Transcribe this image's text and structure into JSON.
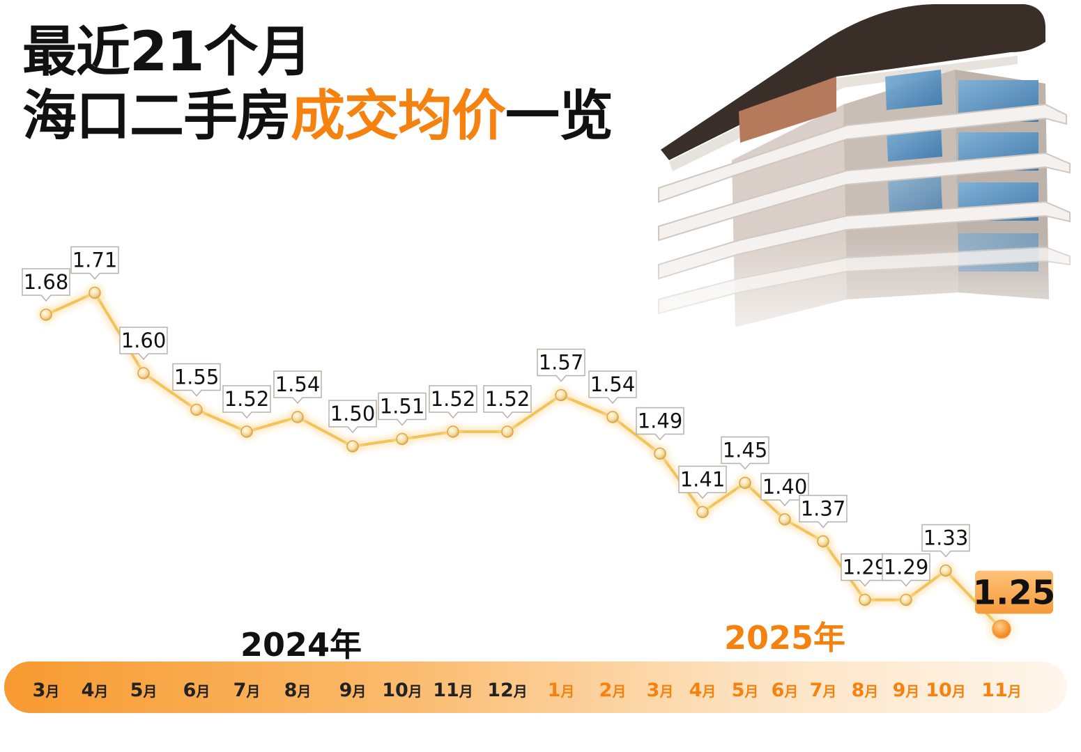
{
  "title": {
    "line1": "最近21个月",
    "line2_prefix": "海口二手房",
    "line2_accent": "成交均价",
    "line2_suffix": "一览"
  },
  "colors": {
    "accent": "#f5820f",
    "line": "#f2c35a",
    "text_dark": "#111111",
    "bar_start": "#f7a33c",
    "bar_end": "#fff3e4"
  },
  "chart_data": {
    "type": "line",
    "title": "最近21个月 海口二手房成交均价一览",
    "years": [
      {
        "label": "2024年",
        "months": 10
      },
      {
        "label": "2025年",
        "months": 11
      }
    ],
    "categories": [
      "3月",
      "4月",
      "5月",
      "6月",
      "7月",
      "8月",
      "9月",
      "10月",
      "11月",
      "12月",
      "1月",
      "2月",
      "3月",
      "4月",
      "5月",
      "6月",
      "7月",
      "8月",
      "9月",
      "10月",
      "11月"
    ],
    "series": [
      {
        "values": [
          1.68,
          1.71,
          1.6,
          1.55,
          1.52,
          1.54,
          1.5,
          1.51,
          1.52,
          1.52,
          1.57,
          1.54,
          1.49,
          1.41,
          1.45,
          1.4,
          1.37,
          1.29,
          1.29,
          1.33,
          1.25
        ],
        "labels": [
          "1.68",
          "1.71",
          "1.60",
          "1.55",
          "1.52",
          "1.54",
          "1.50",
          "1.51",
          "1.52",
          "1.52",
          "1.57",
          "1.54",
          "1.49",
          "1.41",
          "1.45",
          "1.40",
          "1.37",
          "1.29",
          "1.29",
          "1.33",
          "1.25"
        ]
      }
    ],
    "highlight_last": true,
    "ylim": [
      1.2,
      1.75
    ],
    "grid": false,
    "legend": "none"
  },
  "illustration": {
    "icon": "building-icon"
  }
}
